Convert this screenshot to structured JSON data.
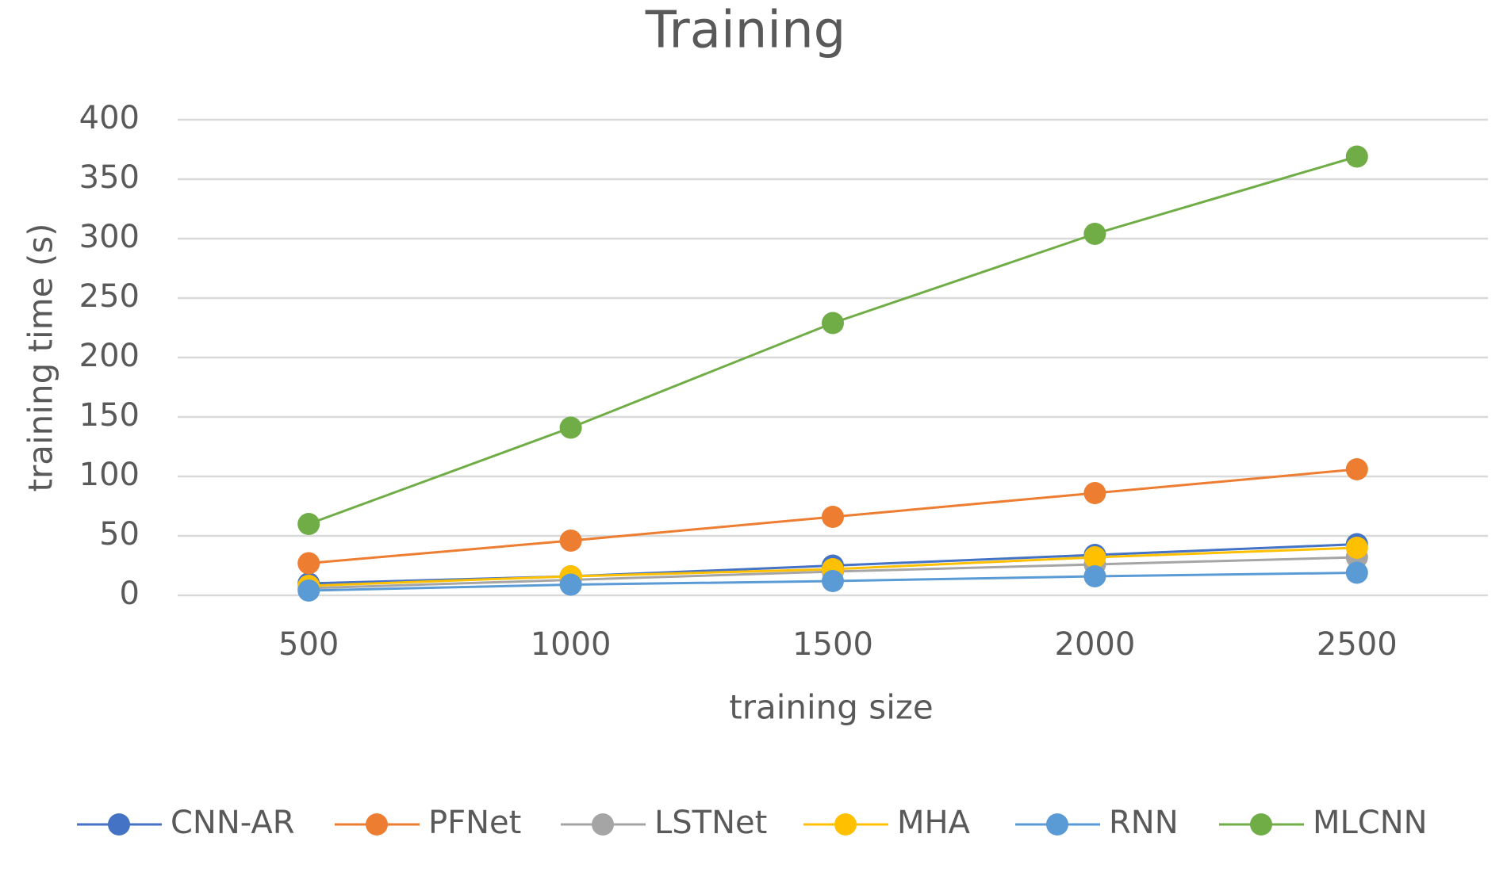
{
  "chart_data": {
    "type": "line",
    "title": "Training",
    "x_label": "training size",
    "y_label": "training time (s)",
    "categories": [
      "500",
      "1000",
      "1500",
      "2000",
      "2500"
    ],
    "series": [
      {
        "name": "CNN-AR",
        "color": "#4472c4",
        "values": [
          10,
          16,
          25,
          34,
          43
        ]
      },
      {
        "name": "PFNet",
        "color": "#ed7d31",
        "values": [
          27,
          46,
          66,
          86,
          106
        ]
      },
      {
        "name": "LSTNet",
        "color": "#a5a5a5",
        "values": [
          6,
          13,
          20,
          26,
          32
        ]
      },
      {
        "name": "MHA",
        "color": "#ffc000",
        "values": [
          8,
          16,
          22,
          32,
          40
        ]
      },
      {
        "name": "RNN",
        "color": "#5b9bd5",
        "values": [
          4,
          9,
          12,
          16,
          19
        ]
      },
      {
        "name": "MLCNN",
        "color": "#70ad47",
        "values": [
          60,
          141,
          229,
          304,
          369
        ]
      }
    ],
    "ylim": [
      0,
      400
    ],
    "yticks": [
      0,
      50,
      100,
      150,
      200,
      250,
      300,
      350,
      400
    ],
    "grid": true,
    "legend": "bottom"
  }
}
